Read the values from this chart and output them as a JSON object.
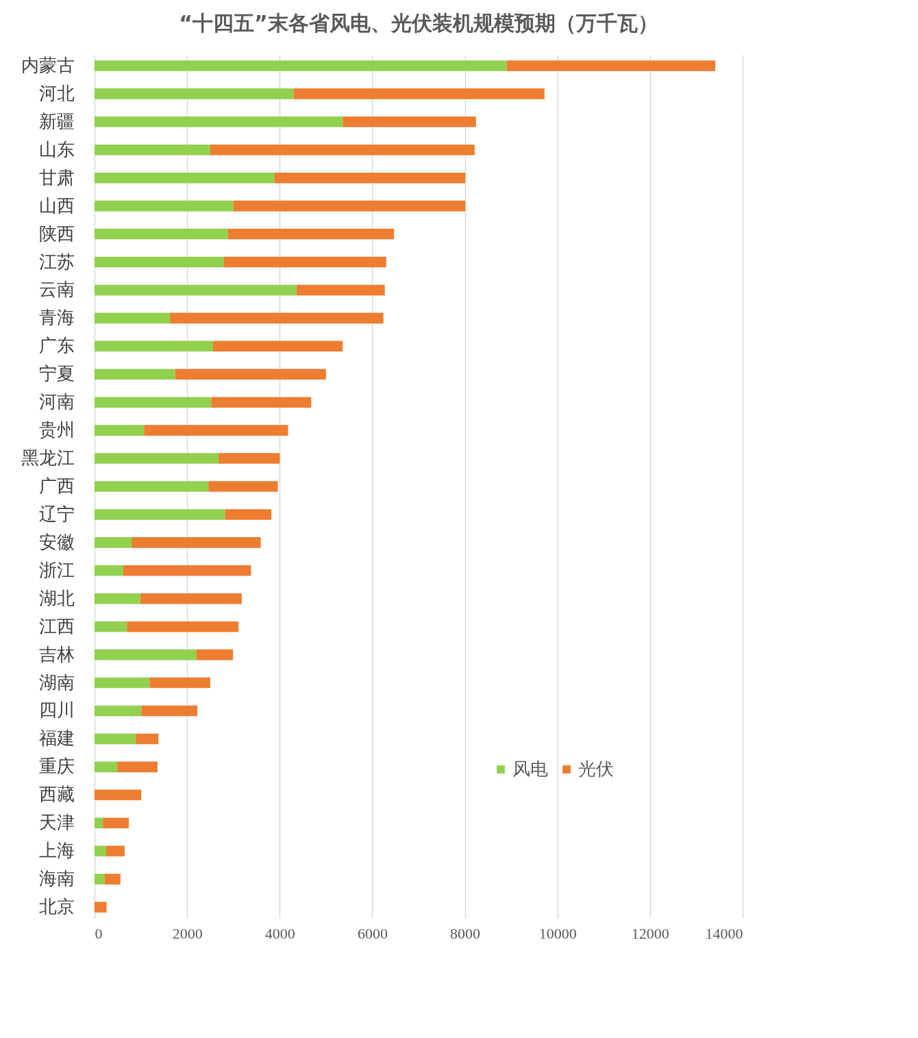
{
  "chart_data": {
    "type": "bar",
    "orientation": "horizontal",
    "stacked": true,
    "title": "“十四五”末各省风电、光伏装机规模预期（万千瓦）",
    "categories": [
      "内蒙古",
      "河北",
      "新疆",
      "山东",
      "甘肃",
      "山西",
      "陕西",
      "江苏",
      "云南",
      "青海",
      "广东",
      "宁夏",
      "河南",
      "贵州",
      "黑龙江",
      "广西",
      "辽宁",
      "安徽",
      "浙江",
      "湖北",
      "江西",
      "吉林",
      "湖南",
      "四川",
      "福建",
      "重庆",
      "西藏",
      "天津",
      "上海",
      "海南",
      "北京"
    ],
    "series": [
      {
        "name": "风电",
        "color": "#92d050",
        "values": [
          8900,
          4300,
          5360,
          2500,
          3880,
          3000,
          2880,
          2790,
          4360,
          1630,
          2560,
          1740,
          2520,
          1070,
          2680,
          2460,
          2820,
          800,
          620,
          990,
          700,
          2200,
          1190,
          1010,
          890,
          490,
          0,
          180,
          250,
          220,
          0
        ]
      },
      {
        "name": "光伏",
        "color": "#ed7d31",
        "values": [
          4510,
          5420,
          2880,
          5710,
          4130,
          5010,
          3590,
          3510,
          1910,
          4610,
          2800,
          3260,
          2160,
          3110,
          1320,
          1500,
          1000,
          2790,
          2760,
          2190,
          2410,
          790,
          1310,
          1210,
          490,
          870,
          1010,
          560,
          400,
          340,
          260
        ]
      }
    ],
    "xlim": [
      0,
      14000
    ],
    "xticks": [
      0,
      2000,
      4000,
      6000,
      8000,
      10000,
      12000,
      14000
    ],
    "grid": "x",
    "legend": "bottom right"
  }
}
